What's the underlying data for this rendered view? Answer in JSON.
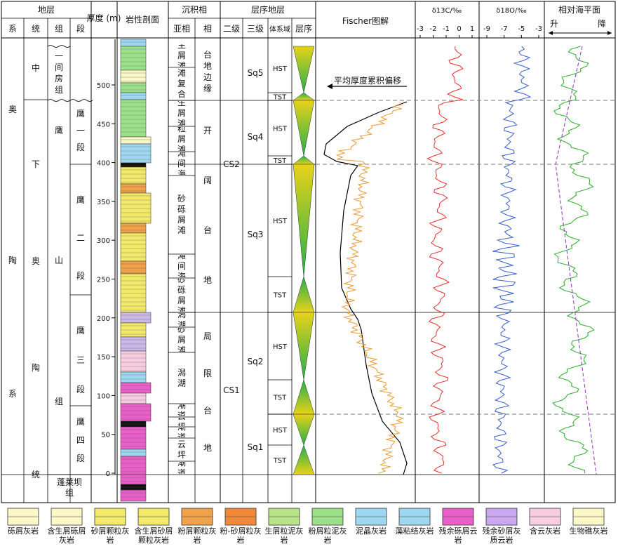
{
  "header": {
    "stratigraphy": "地层",
    "system": "系",
    "series": "统",
    "formation": "组",
    "member": "段",
    "thickness": "厚度 (m)",
    "lithology": "岩性剖面",
    "facies": "沉积相",
    "subfacies": "亚相",
    "facies_col": "相",
    "sequence_strat": "层序地层",
    "second_order": "二级",
    "third_order": "三级",
    "systems_tract": "体系域",
    "sequence": "层序",
    "fischer": "Fischer图解",
    "d13c": "δ13C/‰",
    "d18o": "δ18O/‰",
    "sea_level": "相对海平面",
    "rise": "升",
    "fall": "降"
  },
  "strata": {
    "system_text": [
      "奥",
      "陶",
      "系"
    ],
    "series_middle": "中",
    "series_lower_chars": [
      "下",
      "奥",
      "陶",
      "统"
    ],
    "formation_yijianfang": "一间房组",
    "formation_yingshan": [
      "鹰",
      "山",
      "组"
    ],
    "formation_penglaiba": "蓬莱坝组",
    "members": [
      "鹰一段",
      "鹰二段",
      "鹰三段",
      "鹰四段"
    ]
  },
  "thickness_axis": {
    "ticks": [
      0,
      50,
      100,
      150,
      200,
      250,
      300,
      350,
      400,
      450,
      500
    ]
  },
  "subfacies": [
    "生屑滩",
    "礁滩复合体",
    "生屑滩",
    "粒屑滩",
    "滩间海",
    "砂砾屑滩",
    "滩间海",
    "砂砾屑滩",
    "潟湖",
    "砂屑滩",
    "潟湖",
    "潮道",
    "云坪",
    "潮道",
    "云坪",
    "潮道"
  ],
  "facies": [
    "台地边缘",
    "开阔台地",
    "局限台地"
  ],
  "second_order_seq": [
    "CS2",
    "CS1"
  ],
  "third_order_seq": [
    "Sq5",
    "Sq4",
    "Sq3",
    "Sq2",
    "Sq1"
  ],
  "systems_tracts": [
    "HST",
    "TST",
    "HST",
    "TST",
    "HST",
    "TST",
    "HST",
    "TST",
    "HST",
    "TST"
  ],
  "fischer_label": "平均厚度累积偏移",
  "d13c_axis": {
    "ticks": [
      -3,
      -2,
      -1,
      0,
      1
    ]
  },
  "d18o_axis": {
    "ticks": [
      -9,
      -7,
      -5,
      -3
    ]
  },
  "legend": [
    {
      "label": "砾屑灰岩"
    },
    {
      "label": "含生屑砾屑灰岩"
    },
    {
      "label": "砂屑颗粒灰岩"
    },
    {
      "label": "含生屑砂屑颗粒灰岩"
    },
    {
      "label": "粉屑颗粒灰岩"
    },
    {
      "label": "粉-砂屑粒灰岩"
    },
    {
      "label": "生屑粒泥灰岩"
    },
    {
      "label": "粉屑粒泥灰岩"
    },
    {
      "label": "泥晶灰岩"
    },
    {
      "label": "藻粘结灰岩"
    },
    {
      "label": "残余砾屑云岩"
    },
    {
      "label": "残余砂屑灰质云岩"
    },
    {
      "label": "含云灰岩"
    },
    {
      "label": "生物礁灰岩"
    }
  ],
  "colors": {
    "grid": "#000000",
    "fischer_black": "#000000",
    "fischer_orange": "#e8a040",
    "d13c_line": "#e53030",
    "d18o_line": "#3a5fcc",
    "sea_green": "#3ab03a",
    "sea_trend": "#9a40c8",
    "tri_green": "#22b04a",
    "tri_yellow": "#e8d21a"
  }
}
